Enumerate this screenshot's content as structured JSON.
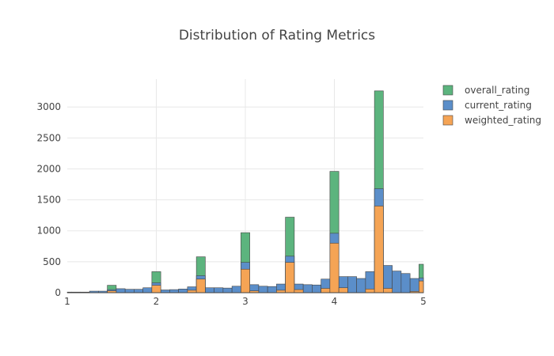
{
  "chart_data": {
    "type": "bar",
    "barmode": "stacked-overlay",
    "title": "Distribution of Rating Metrics",
    "xlabel": "",
    "ylabel": "",
    "xlim": [
      1,
      5
    ],
    "ylim": [
      0,
      3450
    ],
    "bin_width": 0.1,
    "x_ticks": [
      "1",
      "2",
      "3",
      "4",
      "5"
    ],
    "y_ticks": [
      "0",
      "500",
      "1000",
      "1500",
      "2000",
      "2500",
      "3000"
    ],
    "grid": true,
    "legend_position": "right",
    "series": [
      {
        "name": "overall_rating",
        "color": "#5cb47e",
        "bins": [
          {
            "x": 1.5,
            "value": 120
          },
          {
            "x": 2.0,
            "value": 340
          },
          {
            "x": 2.5,
            "value": 580
          },
          {
            "x": 3.0,
            "value": 970
          },
          {
            "x": 3.5,
            "value": 1220
          },
          {
            "x": 4.0,
            "value": 1960
          },
          {
            "x": 4.5,
            "value": 3260
          },
          {
            "x": 5.0,
            "value": 460
          }
        ]
      },
      {
        "name": "current_rating",
        "color": "#5b8ec9",
        "bins": [
          {
            "x": 1.0,
            "value": 10
          },
          {
            "x": 1.1,
            "value": 10
          },
          {
            "x": 1.2,
            "value": 10
          },
          {
            "x": 1.3,
            "value": 25
          },
          {
            "x": 1.4,
            "value": 25
          },
          {
            "x": 1.5,
            "value": 50
          },
          {
            "x": 1.6,
            "value": 65
          },
          {
            "x": 1.7,
            "value": 55
          },
          {
            "x": 1.8,
            "value": 55
          },
          {
            "x": 1.9,
            "value": 80
          },
          {
            "x": 2.0,
            "value": 160
          },
          {
            "x": 2.1,
            "value": 45
          },
          {
            "x": 2.2,
            "value": 50
          },
          {
            "x": 2.3,
            "value": 60
          },
          {
            "x": 2.4,
            "value": 95
          },
          {
            "x": 2.5,
            "value": 275
          },
          {
            "x": 2.6,
            "value": 80
          },
          {
            "x": 2.7,
            "value": 80
          },
          {
            "x": 2.8,
            "value": 75
          },
          {
            "x": 2.9,
            "value": 105
          },
          {
            "x": 3.0,
            "value": 490
          },
          {
            "x": 3.1,
            "value": 130
          },
          {
            "x": 3.2,
            "value": 105
          },
          {
            "x": 3.3,
            "value": 100
          },
          {
            "x": 3.4,
            "value": 140
          },
          {
            "x": 3.5,
            "value": 590
          },
          {
            "x": 3.6,
            "value": 140
          },
          {
            "x": 3.7,
            "value": 130
          },
          {
            "x": 3.8,
            "value": 125
          },
          {
            "x": 3.9,
            "value": 220
          },
          {
            "x": 4.0,
            "value": 960
          },
          {
            "x": 4.1,
            "value": 260
          },
          {
            "x": 4.2,
            "value": 260
          },
          {
            "x": 4.3,
            "value": 230
          },
          {
            "x": 4.4,
            "value": 340
          },
          {
            "x": 4.5,
            "value": 1680
          },
          {
            "x": 4.6,
            "value": 440
          },
          {
            "x": 4.7,
            "value": 350
          },
          {
            "x": 4.8,
            "value": 310
          },
          {
            "x": 4.9,
            "value": 230
          },
          {
            "x": 5.0,
            "value": 240
          }
        ]
      },
      {
        "name": "weighted_rating",
        "color": "#f5a455",
        "bins": [
          {
            "x": 1.5,
            "value": 30
          },
          {
            "x": 2.0,
            "value": 120
          },
          {
            "x": 2.4,
            "value": 40
          },
          {
            "x": 2.5,
            "value": 220
          },
          {
            "x": 3.0,
            "value": 380
          },
          {
            "x": 3.1,
            "value": 30
          },
          {
            "x": 3.4,
            "value": 40
          },
          {
            "x": 3.5,
            "value": 490
          },
          {
            "x": 3.6,
            "value": 50
          },
          {
            "x": 3.9,
            "value": 70
          },
          {
            "x": 4.0,
            "value": 800
          },
          {
            "x": 4.1,
            "value": 80
          },
          {
            "x": 4.4,
            "value": 60
          },
          {
            "x": 4.5,
            "value": 1400
          },
          {
            "x": 4.6,
            "value": 70
          },
          {
            "x": 4.9,
            "value": 20
          },
          {
            "x": 5.0,
            "value": 190
          }
        ]
      }
    ]
  }
}
